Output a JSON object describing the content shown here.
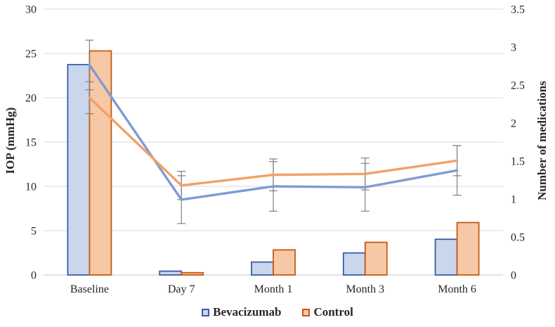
{
  "chart_data": {
    "type": "combo-bar-line",
    "title": "",
    "categories": [
      "Baseline",
      "Day 7",
      "Month 1",
      "Month 3",
      "Month 6"
    ],
    "left_axis": {
      "label": "IOP (mmHg)",
      "min": 0,
      "max": 30,
      "step": 5,
      "ticks": [
        "0",
        "5",
        "10",
        "15",
        "20",
        "25",
        "30"
      ]
    },
    "right_axis": {
      "label": "Number of medications",
      "min": 0,
      "max": 3.5,
      "step": 0.5,
      "ticks": [
        "0",
        "0.5",
        "1",
        "1.5",
        "2",
        "2.5",
        "3",
        "3.5"
      ]
    },
    "bar_series": [
      {
        "name": "Bevacizumab",
        "axis": "right",
        "values": [
          2.77,
          0.05,
          0.17,
          0.29,
          0.47
        ],
        "fill": "#C9D6EC",
        "border": "#3A5BA8"
      },
      {
        "name": "Control",
        "axis": "right",
        "values": [
          2.95,
          0.03,
          0.33,
          0.43,
          0.69
        ],
        "fill": "#F7C8A6",
        "border": "#C55A11"
      }
    ],
    "line_series": [
      {
        "name": "Bevacizumab",
        "axis": "left",
        "values": [
          23.7,
          8.5,
          10.0,
          9.9,
          11.8
        ],
        "errors": [
          2.8,
          2.7,
          2.8,
          2.7,
          2.8
        ],
        "color": "#7E9CD4"
      },
      {
        "name": "Control",
        "axis": "left",
        "values": [
          20.0,
          10.1,
          11.3,
          11.4,
          12.9
        ],
        "errors": [
          1.8,
          1.6,
          1.8,
          1.8,
          1.7
        ],
        "color": "#F1A166"
      }
    ],
    "legend": [
      {
        "label": "Bevacizumab"
      },
      {
        "label": "Control"
      }
    ],
    "grid_color": "#D9D9D9",
    "axis_line_color": "#C6C6C6",
    "error_bar_color": "#808080",
    "text_color": "#262626"
  }
}
